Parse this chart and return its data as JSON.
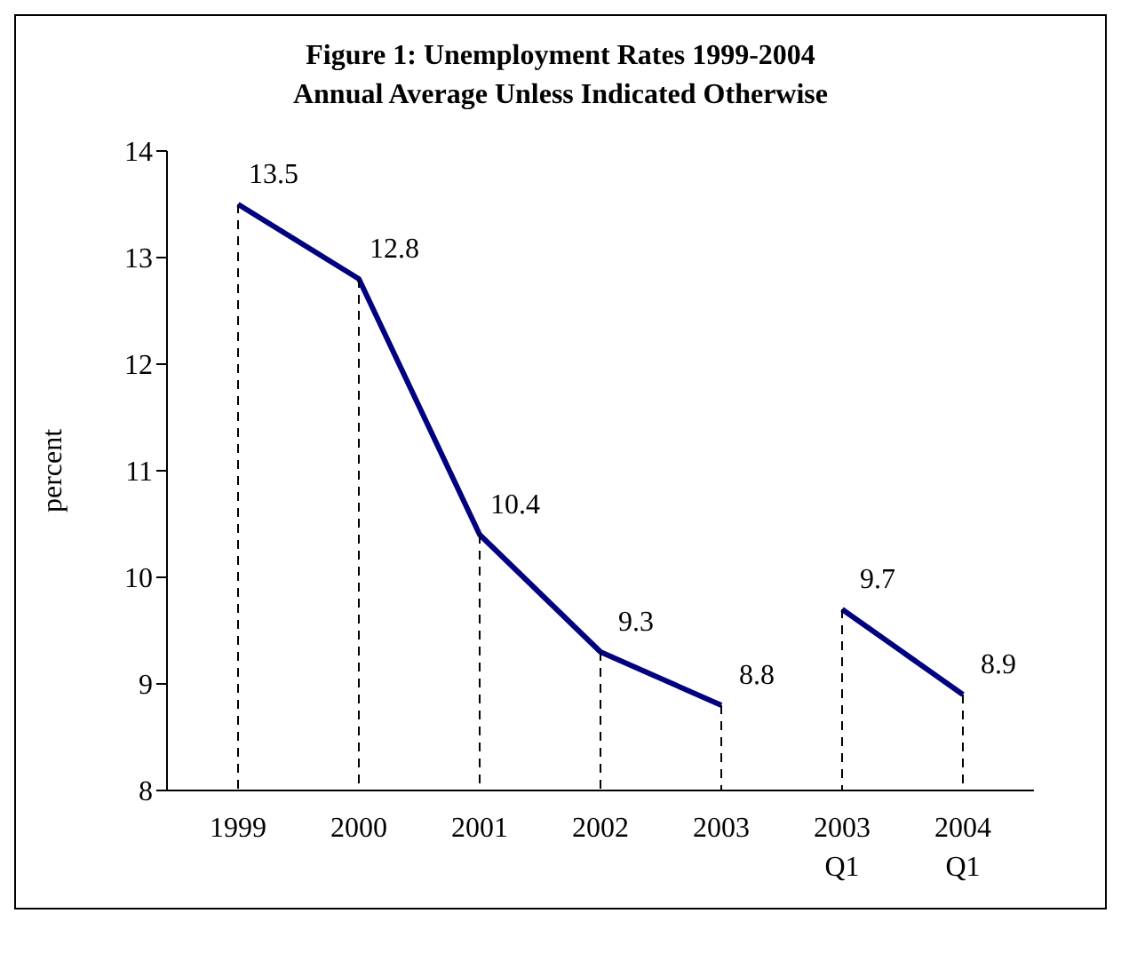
{
  "chart_data": {
    "type": "line",
    "title": "Figure 1: Unemployment Rates 1999-2004",
    "subtitle": "Annual Average Unless Indicated Otherwise",
    "ylabel": "percent",
    "categories": [
      "1999",
      "2000",
      "2001",
      "2002",
      "2003",
      "2003 Q1",
      "2004 Q1"
    ],
    "series": [
      {
        "color": "#000080",
        "values": [
          13.5,
          12.8,
          10.4,
          9.3,
          8.8,
          null,
          null
        ]
      },
      {
        "color": "#000080",
        "values": [
          null,
          null,
          null,
          null,
          null,
          9.7,
          8.9
        ]
      }
    ],
    "ylim": [
      8,
      14
    ],
    "yticks": [
      8,
      9,
      10,
      11,
      12,
      13,
      14
    ],
    "grid": "x",
    "legend": false,
    "line_style": "solid",
    "data_labels": true
  }
}
